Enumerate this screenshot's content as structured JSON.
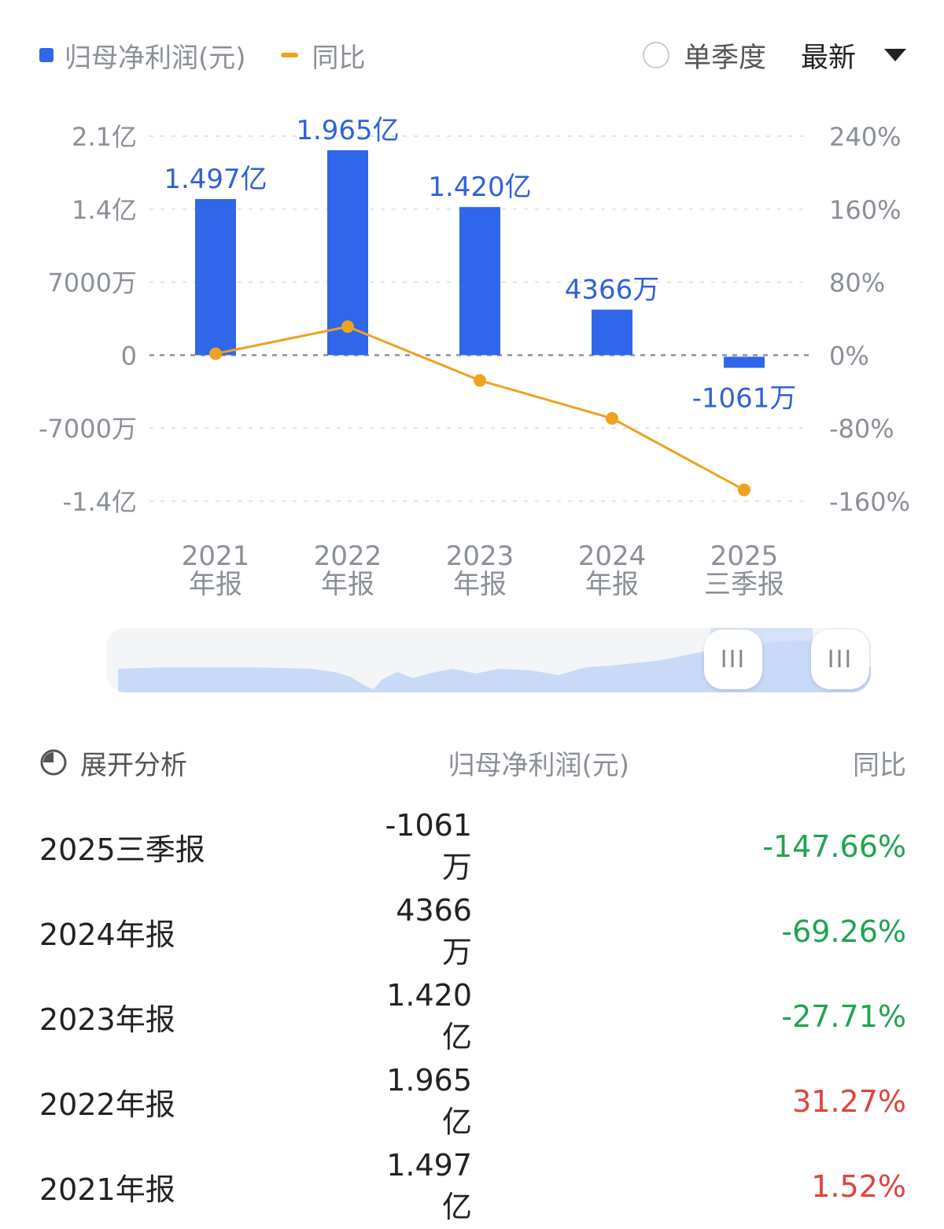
{
  "legend": {
    "series1": "归母净利润(元)",
    "series2": "同比"
  },
  "controls": {
    "single_quarter": "单季度",
    "latest": "最新"
  },
  "chart_data": {
    "type": "bar+line",
    "categories": [
      [
        "2021",
        "年报"
      ],
      [
        "2022",
        "年报"
      ],
      [
        "2023",
        "年报"
      ],
      [
        "2024",
        "年报"
      ],
      [
        "2025",
        "三季报"
      ]
    ],
    "series": [
      {
        "name": "归母净利润(元)",
        "type": "bar",
        "axis": "left",
        "color": "#2f66ea",
        "values": [
          149700000,
          196500000,
          142000000,
          43660000,
          -10610000
        ],
        "labels": [
          "1.497亿",
          "1.965亿",
          "1.420亿",
          "4366万",
          "-1061万"
        ]
      },
      {
        "name": "同比",
        "type": "line",
        "axis": "right",
        "color": "#eea21f",
        "values": [
          1.52,
          31.27,
          -27.71,
          -69.26,
          -147.66
        ]
      }
    ],
    "left_axis": {
      "ticks": [
        210000000,
        140000000,
        70000000,
        0,
        -70000000,
        -140000000
      ],
      "labels": [
        "2.1亿",
        "1.4亿",
        "7000万",
        "0",
        "-7000万",
        "-1.4亿"
      ],
      "range": [
        -140000000,
        210000000
      ]
    },
    "right_axis": {
      "ticks": [
        240,
        160,
        80,
        0,
        -80,
        -160
      ],
      "labels": [
        "240%",
        "160%",
        "80%",
        "0%",
        "-80%",
        "-160%"
      ],
      "range": [
        -160,
        240
      ]
    },
    "grid": true
  },
  "navigator": {
    "handle_glyph": "III"
  },
  "table": {
    "header": {
      "expand": "展开分析",
      "value": "归母净利润(元)",
      "yoy": "同比"
    },
    "rows": [
      {
        "period": "2025三季报",
        "value": "-1061万",
        "yoy": "-147.66%",
        "trend": "down"
      },
      {
        "period": "2024年报",
        "value": "4366万",
        "yoy": "-69.26%",
        "trend": "down"
      },
      {
        "period": "2023年报",
        "value": "1.420亿",
        "yoy": "-27.71%",
        "trend": "down"
      },
      {
        "period": "2022年报",
        "value": "1.965亿",
        "yoy": "31.27%",
        "trend": "up"
      },
      {
        "period": "2021年报",
        "value": "1.497亿",
        "yoy": "1.52%",
        "trend": "up"
      }
    ]
  },
  "colors": {
    "up": "#e0423b",
    "down": "#1fa450",
    "axis_text": "#8a8f98",
    "bar": "#2f66ea",
    "line": "#eea21f"
  }
}
